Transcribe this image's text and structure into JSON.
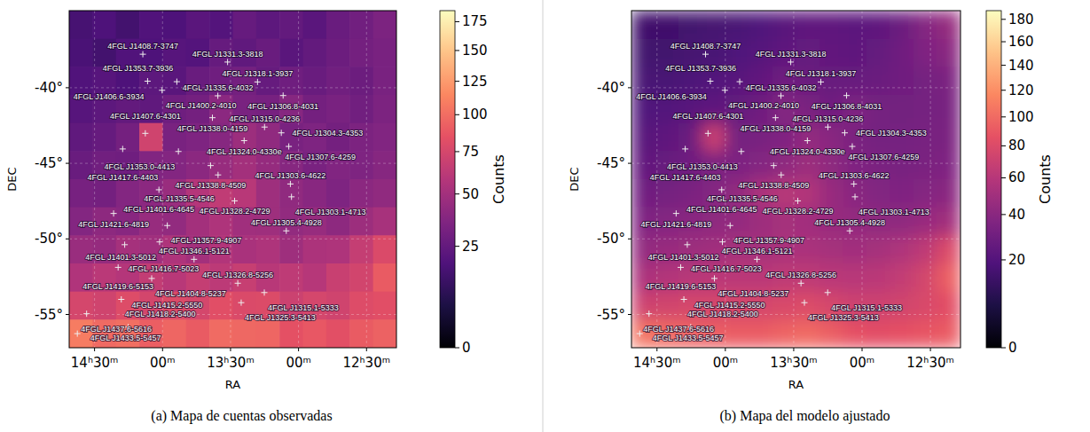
{
  "chart_data": [
    {
      "type": "heatmap",
      "title": "(a) Mapa de cuentas observadas",
      "x_label": "RA",
      "y_label": "DEC",
      "grid": true,
      "marker": "plus",
      "xlim": [
        220.3,
        184.2
      ],
      "ylim": [
        -57.2,
        -34.9
      ],
      "xticks": [
        {
          "value": 217.5,
          "label": "14ʰ30ᵐ"
        },
        {
          "value": 210,
          "label": "00ᵐ"
        },
        {
          "value": 202.5,
          "label": "13ʰ30ᵐ"
        },
        {
          "value": 195,
          "label": "00ᵐ"
        },
        {
          "value": 187.5,
          "label": "12ʰ30ᵐ"
        }
      ],
      "yticks": [
        {
          "value": -40,
          "label": "-40°"
        },
        {
          "value": -45,
          "label": "-45°"
        },
        {
          "value": -50,
          "label": "-50°"
        },
        {
          "value": -55,
          "label": "-55°"
        }
      ],
      "colorbar": {
        "label": "Counts",
        "range": [
          0,
          185
        ],
        "ticks": [
          0,
          25,
          50,
          75,
          100,
          125,
          150,
          175
        ]
      },
      "cells": [
        [
          16,
          18,
          15,
          19,
          18,
          22,
          20,
          26,
          23,
          25,
          22,
          27,
          30,
          34
        ],
        [
          17,
          15,
          19,
          18,
          21,
          20,
          26,
          24,
          27,
          22,
          25,
          28,
          31,
          33
        ],
        [
          19,
          21,
          18,
          23,
          22,
          27,
          29,
          31,
          26,
          29,
          27,
          30,
          28,
          33
        ],
        [
          21,
          23,
          25,
          24,
          29,
          31,
          40,
          33,
          32,
          38,
          31,
          33,
          30,
          34
        ],
        [
          24,
          26,
          31,
          72,
          33,
          35,
          38,
          47,
          42,
          33,
          35,
          31,
          34,
          36
        ],
        [
          27,
          30,
          29,
          36,
          37,
          40,
          45,
          50,
          44,
          38,
          33,
          36,
          35,
          38
        ],
        [
          32,
          31,
          37,
          40,
          46,
          58,
          64,
          60,
          48,
          42,
          39,
          35,
          40,
          42
        ],
        [
          37,
          41,
          39,
          45,
          43,
          50,
          55,
          49,
          48,
          43,
          45,
          41,
          47,
          52
        ],
        [
          46,
          44,
          51,
          49,
          55,
          50,
          57,
          53,
          55,
          48,
          54,
          55,
          66,
          78
        ],
        [
          56,
          61,
          58,
          65,
          60,
          66,
          62,
          67,
          60,
          63,
          59,
          68,
          73,
          90
        ],
        [
          75,
          72,
          80,
          74,
          79,
          75,
          82,
          78,
          79,
          70,
          75,
          72,
          80,
          82
        ],
        [
          108,
          98,
          101,
          92,
          96,
          90,
          99,
          97,
          96,
          84,
          88,
          83,
          90,
          94
        ]
      ],
      "sources": [
        {
          "label": "4FGL J1408.7-3747",
          "ra": 212.175,
          "dec": -37.783
        },
        {
          "label": "4FGL J1331.3-3818",
          "ra": 202.825,
          "dec": -38.3
        },
        {
          "label": "4FGL J1353.7-3936",
          "ra": 208.425,
          "dec": -39.6
        },
        {
          "label": "4FGL J1318.1-3937",
          "ra": 199.525,
          "dec": -39.617
        },
        {
          "label": "4FGL J1406.6-3934",
          "ra": 211.65,
          "dec": -39.567
        },
        {
          "label": "4FGL J1400.2-4010",
          "ra": 210.05,
          "dec": -40.167
        },
        {
          "label": "4FGL J1335.6-4032",
          "ra": 203.9,
          "dec": -40.533
        },
        {
          "label": "4FGL J1306.8-4031",
          "ra": 196.7,
          "dec": -40.517
        },
        {
          "label": "4FGL J1338.0-4159",
          "ra": 204.5,
          "dec": -41.983
        },
        {
          "label": "4FGL J1315.0-4236",
          "ra": 198.75,
          "dec": -42.6
        },
        {
          "label": "4FGL J1307.6-4259",
          "ra": 196.9,
          "dec": -42.983
        },
        {
          "label": "4FGL J1324.0-4330e",
          "ra": 201.0,
          "dec": -43.5
        },
        {
          "label": "4FGL J1407.6-4301",
          "ra": 211.9,
          "dec": -43.017
        },
        {
          "label": "4FGL J1304.3-4353",
          "ra": 196.075,
          "dec": -43.883
        },
        {
          "label": "4FGL J1353.0-4413",
          "ra": 208.25,
          "dec": -44.217
        },
        {
          "label": "4FGL J1417.6-4403",
          "ra": 214.4,
          "dec": -44.05
        },
        {
          "label": "4FGL J1338.8-4509",
          "ra": 204.7,
          "dec": -45.15
        },
        {
          "label": "4FGL J1335.5-4546",
          "ra": 203.875,
          "dec": -45.767
        },
        {
          "label": "4FGL J1303.6-4622",
          "ra": 195.9,
          "dec": -46.367
        },
        {
          "label": "4FGL J1401.6-4645",
          "ra": 210.4,
          "dec": -46.75
        },
        {
          "label": "4FGL J1328.2-4729",
          "ra": 202.05,
          "dec": -47.483
        },
        {
          "label": "4FGL J1303.1-4713",
          "ra": 195.775,
          "dec": -47.217
        },
        {
          "label": "4FGL J1421.6-4819",
          "ra": 215.4,
          "dec": -48.317
        },
        {
          "label": "4FGL J1357.9-4907",
          "ra": 209.475,
          "dec": -49.117
        },
        {
          "label": "4FGL J1305.4-4928",
          "ra": 196.35,
          "dec": -49.467
        },
        {
          "label": "4FGL J1401.3-5012",
          "ra": 210.325,
          "dec": -50.2
        },
        {
          "label": "4FGL J1416.7-5023",
          "ra": 214.175,
          "dec": -50.383
        },
        {
          "label": "4FGL J1346.1-5121",
          "ra": 206.525,
          "dec": -51.35
        },
        {
          "label": "4FGL J1419.6-5153",
          "ra": 214.9,
          "dec": -51.883
        },
        {
          "label": "4FGL J1404.8-5237",
          "ra": 211.2,
          "dec": -52.617
        },
        {
          "label": "4FGL J1326.8-5256",
          "ra": 201.7,
          "dec": -52.933
        },
        {
          "label": "4FGL J1315.1-5333",
          "ra": 198.775,
          "dec": -53.55
        },
        {
          "label": "4FGL J1325.3-5413",
          "ra": 201.325,
          "dec": -54.217
        },
        {
          "label": "4FGL J1418.2-5400",
          "ra": 214.55,
          "dec": -54.0
        },
        {
          "label": "4FGL J1433.5-5457",
          "ra": 218.375,
          "dec": -54.95
        },
        {
          "label": "4FGL J1415.2-5550",
          "ra": 213.8,
          "dec": -55.833
        },
        {
          "label": "4FGL J1437.6-5616",
          "ra": 219.4,
          "dec": -56.267
        }
      ]
    },
    {
      "type": "heatmap",
      "title": "(b) Mapa del modelo ajustado",
      "x_label": "RA",
      "y_label": "DEC",
      "grid": true,
      "marker": "plus",
      "xlim": [
        220.3,
        184.2
      ],
      "ylim": [
        -57.2,
        -34.9
      ],
      "xticks": [
        {
          "value": 217.5,
          "label": "14ʰ30ᵐ"
        },
        {
          "value": 210,
          "label": "00ᵐ"
        },
        {
          "value": 202.5,
          "label": "13ʰ30ᵐ"
        },
        {
          "value": 195,
          "label": "00ᵐ"
        },
        {
          "value": 187.5,
          "label": "12ʰ30ᵐ"
        }
      ],
      "yticks": [
        {
          "value": -40,
          "label": "-40°"
        },
        {
          "value": -45,
          "label": "-45°"
        },
        {
          "value": -50,
          "label": "-50°"
        },
        {
          "value": -55,
          "label": "-55°"
        }
      ],
      "colorbar": {
        "label": "Counts",
        "range": [
          0,
          188
        ],
        "ticks": [
          0,
          20,
          40,
          60,
          80,
          100,
          120,
          140,
          160,
          180
        ]
      },
      "cells": [
        [
          14,
          14,
          15,
          16,
          17,
          19,
          22,
          24,
          24,
          23,
          24,
          28,
          38,
          45
        ],
        [
          15,
          15,
          16,
          17,
          19,
          21,
          24,
          26,
          25,
          24,
          26,
          30,
          36,
          40
        ],
        [
          17,
          17,
          18,
          20,
          22,
          25,
          30,
          28,
          27,
          27,
          28,
          30,
          32,
          34
        ],
        [
          19,
          20,
          22,
          24,
          26,
          30,
          38,
          34,
          30,
          36,
          32,
          31,
          32,
          33
        ],
        [
          22,
          24,
          28,
          70,
          32,
          33,
          36,
          44,
          40,
          34,
          32,
          32,
          33,
          34
        ],
        [
          25,
          27,
          30,
          34,
          35,
          38,
          42,
          48,
          42,
          36,
          34,
          33,
          34,
          36
        ],
        [
          30,
          32,
          34,
          38,
          44,
          55,
          60,
          58,
          46,
          40,
          37,
          36,
          38,
          40
        ],
        [
          36,
          38,
          40,
          42,
          44,
          48,
          52,
          50,
          46,
          44,
          42,
          42,
          46,
          50
        ],
        [
          44,
          46,
          48,
          50,
          52,
          52,
          54,
          54,
          52,
          50,
          52,
          56,
          64,
          80
        ],
        [
          55,
          58,
          60,
          62,
          62,
          62,
          64,
          64,
          62,
          60,
          62,
          66,
          75,
          95
        ],
        [
          72,
          74,
          76,
          76,
          76,
          76,
          78,
          80,
          76,
          72,
          72,
          74,
          78,
          84
        ],
        [
          105,
          100,
          96,
          94,
          92,
          92,
          96,
          100,
          94,
          86,
          84,
          86,
          88,
          92
        ]
      ],
      "sources": [
        {
          "label": "4FGL J1408.7-3747",
          "ra": 212.175,
          "dec": -37.783
        },
        {
          "label": "4FGL J1331.3-3818",
          "ra": 202.825,
          "dec": -38.3
        },
        {
          "label": "4FGL J1353.7-3936",
          "ra": 208.425,
          "dec": -39.6
        },
        {
          "label": "4FGL J1318.1-3937",
          "ra": 199.525,
          "dec": -39.617
        },
        {
          "label": "4FGL J1406.6-3934",
          "ra": 211.65,
          "dec": -39.567
        },
        {
          "label": "4FGL J1400.2-4010",
          "ra": 210.05,
          "dec": -40.167
        },
        {
          "label": "4FGL J1335.6-4032",
          "ra": 203.9,
          "dec": -40.533
        },
        {
          "label": "4FGL J1306.8-4031",
          "ra": 196.7,
          "dec": -40.517
        },
        {
          "label": "4FGL J1338.0-4159",
          "ra": 204.5,
          "dec": -41.983
        },
        {
          "label": "4FGL J1315.0-4236",
          "ra": 198.75,
          "dec": -42.6
        },
        {
          "label": "4FGL J1307.6-4259",
          "ra": 196.9,
          "dec": -42.983
        },
        {
          "label": "4FGL J1324.0-4330e",
          "ra": 201.0,
          "dec": -43.5
        },
        {
          "label": "4FGL J1407.6-4301",
          "ra": 211.9,
          "dec": -43.017
        },
        {
          "label": "4FGL J1304.3-4353",
          "ra": 196.075,
          "dec": -43.883
        },
        {
          "label": "4FGL J1353.0-4413",
          "ra": 208.25,
          "dec": -44.217
        },
        {
          "label": "4FGL J1417.6-4403",
          "ra": 214.4,
          "dec": -44.05
        },
        {
          "label": "4FGL J1338.8-4509",
          "ra": 204.7,
          "dec": -45.15
        },
        {
          "label": "4FGL J1335.5-4546",
          "ra": 203.875,
          "dec": -45.767
        },
        {
          "label": "4FGL J1303.6-4622",
          "ra": 195.9,
          "dec": -46.367
        },
        {
          "label": "4FGL J1401.6-4645",
          "ra": 210.4,
          "dec": -46.75
        },
        {
          "label": "4FGL J1328.2-4729",
          "ra": 202.05,
          "dec": -47.483
        },
        {
          "label": "4FGL J1303.1-4713",
          "ra": 195.775,
          "dec": -47.217
        },
        {
          "label": "4FGL J1421.6-4819",
          "ra": 215.4,
          "dec": -48.317
        },
        {
          "label": "4FGL J1357.9-4907",
          "ra": 209.475,
          "dec": -49.117
        },
        {
          "label": "4FGL J1305.4-4928",
          "ra": 196.35,
          "dec": -49.467
        },
        {
          "label": "4FGL J1401.3-5012",
          "ra": 210.325,
          "dec": -50.2
        },
        {
          "label": "4FGL J1416.7-5023",
          "ra": 214.175,
          "dec": -50.383
        },
        {
          "label": "4FGL J1346.1-5121",
          "ra": 206.525,
          "dec": -51.35
        },
        {
          "label": "4FGL J1419.6-5153",
          "ra": 214.9,
          "dec": -51.883
        },
        {
          "label": "4FGL J1404.8-5237",
          "ra": 211.2,
          "dec": -52.617
        },
        {
          "label": "4FGL J1326.8-5256",
          "ra": 201.7,
          "dec": -52.933
        },
        {
          "label": "4FGL J1315.1-5333",
          "ra": 198.775,
          "dec": -53.55
        },
        {
          "label": "4FGL J1325.3-5413",
          "ra": 201.325,
          "dec": -54.217
        },
        {
          "label": "4FGL J1418.2-5400",
          "ra": 214.55,
          "dec": -54.0
        },
        {
          "label": "4FGL J1433.5-5457",
          "ra": 218.375,
          "dec": -54.95
        },
        {
          "label": "4FGL J1415.2-5550",
          "ra": 213.8,
          "dec": -55.833
        },
        {
          "label": "4FGL J1437.6-5616",
          "ra": 219.4,
          "dec": -56.267
        }
      ]
    }
  ]
}
